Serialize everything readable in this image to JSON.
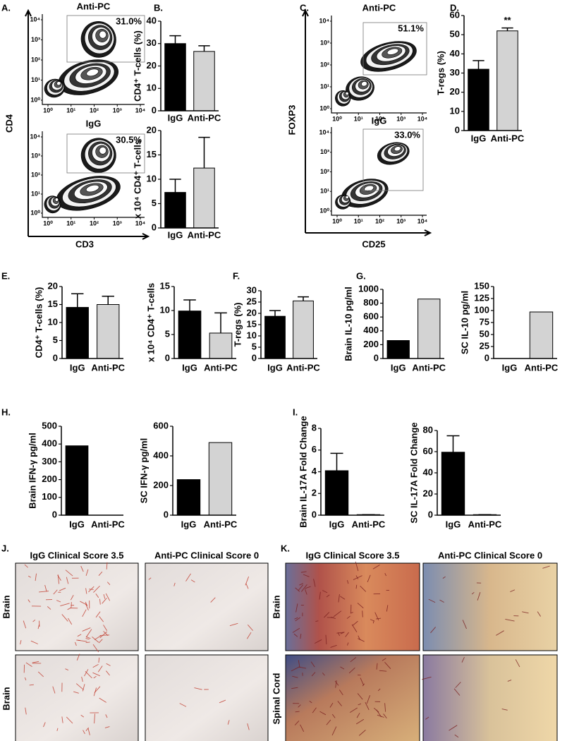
{
  "panel_labels": [
    "A.",
    "B.",
    "C.",
    "D.",
    "E.",
    "F.",
    "G.",
    "H.",
    "I.",
    "J.",
    "K."
  ],
  "flow_ticks": [
    {
      "value": 1,
      "label": "10⁰"
    },
    {
      "value": 10,
      "label": "10¹"
    },
    {
      "value": 100,
      "label": "10²"
    },
    {
      "value": 1000,
      "label": "10³"
    },
    {
      "value": 10000,
      "label": "10⁴"
    }
  ],
  "flow_panels": [
    {
      "x_label": "CD3",
      "y_label": "CD4",
      "plots": [
        {
          "title": "Anti-PC",
          "gate": "31.0%"
        },
        {
          "title": "IgG",
          "gate": "30.5%"
        }
      ]
    },
    {
      "x_label": "CD25",
      "y_label": "FOXP3",
      "plots": [
        {
          "title": "Anti-PC",
          "gate": "51.1%"
        },
        {
          "title": "IgG",
          "gate": "33.0%"
        }
      ]
    }
  ],
  "chart_data": [
    {
      "type": "bar",
      "ylabel": "CD4⁺ T-cells (%)",
      "categories": [
        "IgG",
        "Anti-PC"
      ],
      "values": [
        30,
        26.5
      ],
      "errors": [
        3.5,
        2.5
      ],
      "colors": [
        "#000000",
        "#d3d3d3"
      ],
      "ylim": [
        0,
        40
      ],
      "yticks": [
        0,
        10,
        20,
        30,
        40
      ]
    },
    {
      "type": "bar",
      "ylabel": "x 10⁴ CD4⁺ T-cells",
      "categories": [
        "IgG",
        "Anti-PC"
      ],
      "values": [
        7.3,
        12.3
      ],
      "errors": [
        2.7,
        6.3
      ],
      "colors": [
        "#000000",
        "#d3d3d3"
      ],
      "ylim": [
        0,
        20
      ],
      "yticks": [
        0,
        5,
        10,
        15,
        20
      ]
    },
    {
      "type": "bar",
      "ylabel": "T-regs (%)",
      "categories": [
        "IgG",
        "Anti-PC"
      ],
      "values": [
        32,
        52
      ],
      "errors": [
        4.5,
        1.5
      ],
      "colors": [
        "#000000",
        "#d3d3d3"
      ],
      "ylim": [
        0,
        60
      ],
      "yticks": [
        0,
        10,
        20,
        30,
        40,
        50,
        60
      ],
      "annotation": "**"
    },
    {
      "type": "bar",
      "ylabel": "CD4⁺ T-cells (%)",
      "categories": [
        "IgG",
        "Anti-PC"
      ],
      "values": [
        14.2,
        15
      ],
      "errors": [
        3.8,
        2.3
      ],
      "colors": [
        "#000000",
        "#d3d3d3"
      ],
      "ylim": [
        0,
        20
      ],
      "yticks": [
        0,
        5,
        10,
        15,
        20
      ]
    },
    {
      "type": "bar",
      "ylabel": "x 10⁴ CD4⁺ T-cells",
      "categories": [
        "IgG",
        "Anti-PC"
      ],
      "values": [
        9.9,
        5.3
      ],
      "errors": [
        2.3,
        4.2
      ],
      "colors": [
        "#000000",
        "#d3d3d3"
      ],
      "ylim": [
        0,
        15
      ],
      "yticks": [
        0,
        5,
        10,
        15
      ]
    },
    {
      "type": "bar",
      "ylabel": "T-regs (%)",
      "categories": [
        "IgG",
        "Anti-PC"
      ],
      "values": [
        18.7,
        25.5
      ],
      "errors": [
        2.5,
        1.8
      ],
      "colors": [
        "#000000",
        "#d3d3d3"
      ],
      "ylim": [
        0,
        30
      ],
      "yticks": [
        0,
        5,
        10,
        15,
        20,
        25,
        30
      ]
    },
    {
      "type": "bar",
      "ylabel": "Brain IL-10 pg/ml",
      "categories": [
        "IgG",
        "Anti-PC"
      ],
      "values": [
        260,
        860
      ],
      "colors": [
        "#000000",
        "#d3d3d3"
      ],
      "ylim": [
        0,
        1000
      ],
      "yticks": [
        0,
        200,
        400,
        600,
        800,
        1000
      ]
    },
    {
      "type": "bar",
      "ylabel": "SC IL-10 pg/ml",
      "categories": [
        "IgG",
        "Anti-PC"
      ],
      "values": [
        0,
        97
      ],
      "colors": [
        "#000000",
        "#d3d3d3"
      ],
      "ylim": [
        0,
        150
      ],
      "yticks": [
        0,
        25,
        50,
        75,
        100,
        125,
        150
      ]
    },
    {
      "type": "bar",
      "ylabel": "Brain IFN-γ pg/ml",
      "categories": [
        "IgG",
        "Anti-PC"
      ],
      "values": [
        390,
        0
      ],
      "colors": [
        "#000000",
        "#d3d3d3"
      ],
      "ylim": [
        0,
        500
      ],
      "yticks": [
        0,
        100,
        200,
        300,
        400,
        500
      ]
    },
    {
      "type": "bar",
      "ylabel": "SC IFN-γ pg/ml",
      "categories": [
        "IgG",
        "Anti-PC"
      ],
      "values": [
        240,
        490
      ],
      "colors": [
        "#000000",
        "#d3d3d3"
      ],
      "ylim": [
        0,
        600
      ],
      "yticks": [
        0,
        200,
        400,
        600
      ]
    },
    {
      "type": "bar",
      "ylabel": "Brain IL-17A Fold Change",
      "categories": [
        "IgG",
        "Anti-PC"
      ],
      "values": [
        4.1,
        0.05
      ],
      "errors": [
        1.6,
        0
      ],
      "colors": [
        "#000000",
        "#d3d3d3"
      ],
      "ylim": [
        0,
        8
      ],
      "yticks": [
        0,
        2,
        4,
        6,
        8
      ]
    },
    {
      "type": "bar",
      "ylabel": "SC IL-17A Fold Change",
      "categories": [
        "IgG",
        "Anti-PC"
      ],
      "values": [
        59.5,
        0.5
      ],
      "errors": [
        15.5,
        0
      ],
      "colors": [
        "#000000",
        "#d3d3d3"
      ],
      "ylim": [
        0,
        80
      ],
      "yticks": [
        0,
        20,
        40,
        60,
        80
      ]
    }
  ],
  "histology": [
    {
      "columns": [
        "IgG Clinical Score 3.5",
        "Anti-PC Clinical Score 0"
      ],
      "rows": [
        "Brain",
        "Brain"
      ]
    },
    {
      "columns": [
        "IgG Clinical Score 3.5",
        "Anti-PC Clinical Score 0"
      ],
      "rows": [
        "Brain",
        "Spinal Cord"
      ]
    }
  ]
}
